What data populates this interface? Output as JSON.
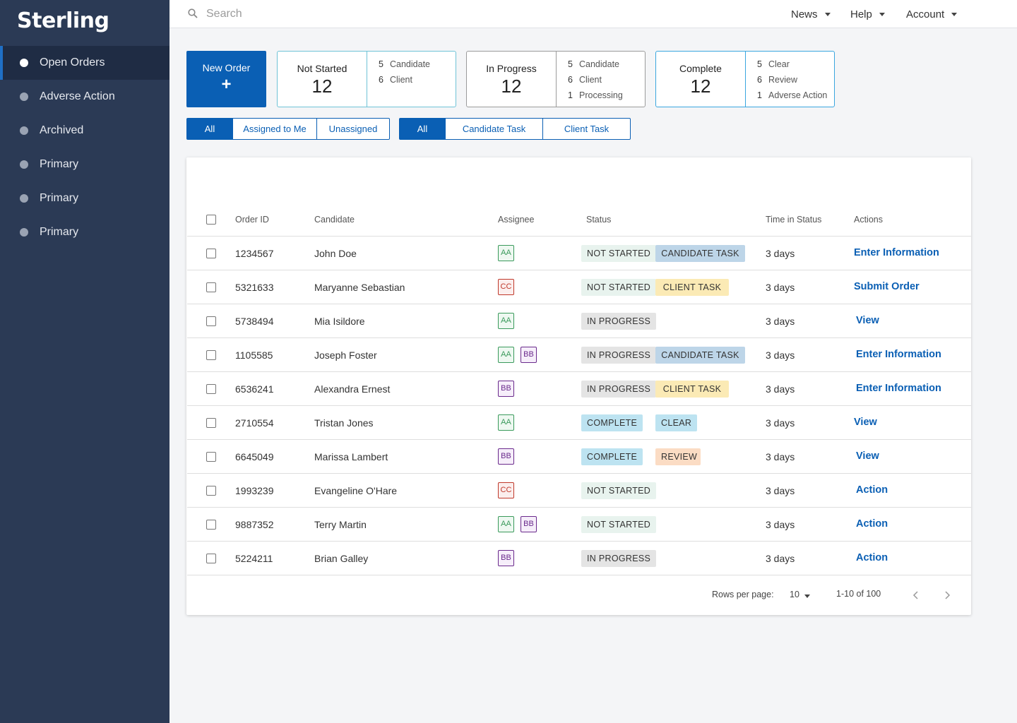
{
  "app": {
    "logo": "Sterling"
  },
  "sidebar": {
    "items": [
      {
        "label": "Open Orders",
        "active": true
      },
      {
        "label": "Adverse Action",
        "active": false
      },
      {
        "label": "Archived",
        "active": false
      },
      {
        "label": "Primary",
        "active": false
      },
      {
        "label": "Primary",
        "active": false
      },
      {
        "label": "Primary",
        "active": false
      }
    ]
  },
  "topbar": {
    "search_placeholder": "Search",
    "menus": [
      "News",
      "Help",
      "Account"
    ]
  },
  "summary": {
    "new_order_label": "New Order",
    "new_order_icon": "+",
    "cards": [
      {
        "title": "Not Started",
        "count": "12",
        "color": "#6fc3d6",
        "rows": [
          {
            "n": "5",
            "label": "Candidate"
          },
          {
            "n": "6",
            "label": "Client"
          }
        ]
      },
      {
        "title": "In Progress",
        "count": "12",
        "color": "#9b9b9b",
        "rows": [
          {
            "n": "5",
            "label": "Candidate"
          },
          {
            "n": "6",
            "label": "Client"
          },
          {
            "n": "1",
            "label": "Processing"
          }
        ]
      },
      {
        "title": "Complete",
        "count": "12",
        "color": "#3aa6df",
        "rows": [
          {
            "n": "5",
            "label": "Clear"
          },
          {
            "n": "6",
            "label": "Review"
          },
          {
            "n": "1",
            "label": "Adverse Action"
          }
        ]
      }
    ]
  },
  "filters": {
    "assign": [
      "All",
      "Assigned to Me",
      "Unassigned"
    ],
    "task": [
      "All",
      "Candidate Task",
      "Client Task"
    ]
  },
  "table": {
    "headers": {
      "order_id": "Order ID",
      "candidate": "Candidate",
      "assignee": "Assignee",
      "status": "Status",
      "time": "Time in Status",
      "actions": "Actions"
    },
    "rows": [
      {
        "id": "1234567",
        "name": "John Doe",
        "assignees": [
          "AA"
        ],
        "status": "NOT STARTED",
        "task": "CANDIDATE TASK",
        "time": "3 days",
        "action": "Enter Information"
      },
      {
        "id": "5321633",
        "name": "Maryanne Sebastian",
        "assignees": [
          "CC"
        ],
        "status": "NOT STARTED",
        "task": "CLIENT TASK",
        "time": "3 days",
        "action": "Submit Order"
      },
      {
        "id": "5738494",
        "name": "Mia Isildore",
        "assignees": [
          "AA"
        ],
        "status": "IN PROGRESS",
        "task": "",
        "time": "3 days",
        "action": "View"
      },
      {
        "id": "1105585",
        "name": "Joseph Foster",
        "assignees": [
          "AA",
          "BB"
        ],
        "status": "IN PROGRESS",
        "task": "CANDIDATE TASK",
        "time": "3 days",
        "action": "Enter Information"
      },
      {
        "id": "6536241",
        "name": "Alexandra Ernest",
        "assignees": [
          "BB"
        ],
        "status": "IN PROGRESS",
        "task": "CLIENT TASK",
        "time": "3 days",
        "action": "Enter Information"
      },
      {
        "id": "2710554",
        "name": "Tristan Jones",
        "assignees": [
          "AA"
        ],
        "status": "COMPLETE",
        "task": "CLEAR",
        "time": "3 days",
        "action": "View"
      },
      {
        "id": "6645049",
        "name": "Marissa Lambert",
        "assignees": [
          "BB"
        ],
        "status": "COMPLETE",
        "task": "REVIEW",
        "time": "3 days",
        "action": "View"
      },
      {
        "id": "1993239",
        "name": "Evangeline O'Hare",
        "assignees": [
          "CC"
        ],
        "status": "NOT STARTED",
        "task": "",
        "time": "3 days",
        "action": "Action"
      },
      {
        "id": "9887352",
        "name": "Terry Martin",
        "assignees": [
          "AA",
          "BB"
        ],
        "status": "NOT STARTED",
        "task": "",
        "time": "3 days",
        "action": "Action"
      },
      {
        "id": "5224211",
        "name": "Brian Galley",
        "assignees": [
          "BB"
        ],
        "status": "IN PROGRESS",
        "task": "",
        "time": "3 days",
        "action": "Action"
      }
    ]
  },
  "pagination": {
    "rows_per_page_label": "Rows per page:",
    "rows_per_page": "10",
    "range": "1-10 of 100"
  }
}
